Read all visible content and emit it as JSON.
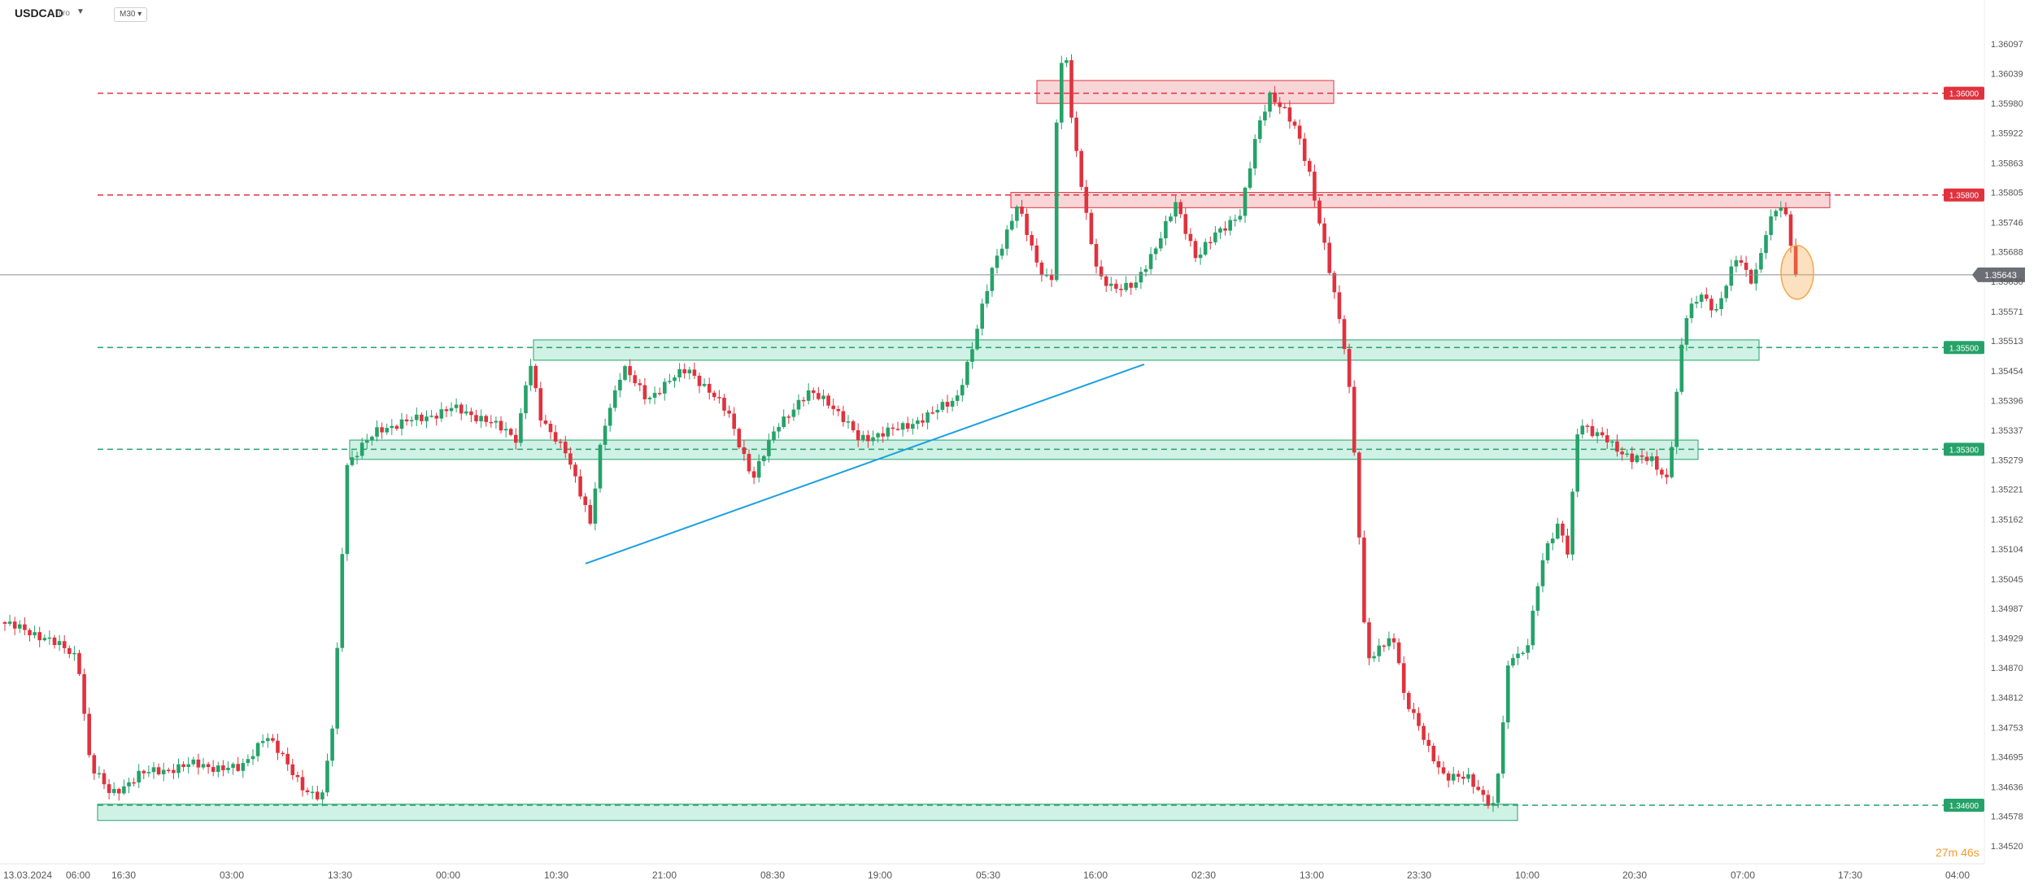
{
  "toolbar": {
    "symbol": "USDCAD",
    "symbol_suffix": "cro",
    "timeframe": "M30",
    "countdown": "27m 46s"
  },
  "colors": {
    "up": "#26a269",
    "down": "#e0323e",
    "zone_resistance": "#f3b4b8",
    "zone_support": "#a9e6cf",
    "trendline": "#1ba0e0",
    "current_price_badge": "#6b6e75",
    "highlight_circle": "#f4a94a"
  },
  "chart_data": {
    "type": "candlestick",
    "symbol": "USDCAD",
    "timeframe": "M30",
    "y_axis": {
      "ticks": [
        "1.36097",
        "1.36039",
        "1.35980",
        "1.35922",
        "1.35863",
        "1.35805",
        "1.35746",
        "1.35688",
        "1.35630",
        "1.35571",
        "1.35513",
        "1.35454",
        "1.35396",
        "1.35337",
        "1.35279",
        "1.35221",
        "1.35162",
        "1.35104",
        "1.35045",
        "1.34987",
        "1.34929",
        "1.34870",
        "1.34812",
        "1.34753",
        "1.34695",
        "1.34636",
        "1.34578",
        "1.34520"
      ],
      "range": [
        1.3452,
        1.36097
      ]
    },
    "x_axis": {
      "ticks": [
        "13.03.2024",
        "06:00",
        "16:30",
        "03:00",
        "13:30",
        "00:00",
        "10:30",
        "21:00",
        "08:30",
        "19:00",
        "05:30",
        "16:00",
        "02:30",
        "13:00",
        "23:30",
        "10:00",
        "20:30",
        "07:00",
        "17:30",
        "04:00"
      ]
    },
    "current_price": "1.35643",
    "levels": [
      {
        "label": "1.36000",
        "value": 1.36,
        "kind": "resistance"
      },
      {
        "label": "1.35800",
        "value": 1.358,
        "kind": "resistance"
      },
      {
        "label": "1.35500",
        "value": 1.355,
        "kind": "support"
      },
      {
        "label": "1.35300",
        "value": 1.353,
        "kind": "support"
      },
      {
        "label": "1.34600",
        "value": 1.346,
        "kind": "support"
      }
    ],
    "zones": [
      {
        "kind": "resistance",
        "low": 1.3598,
        "high": 1.36025,
        "start": 1275,
        "end": 1640
      },
      {
        "kind": "resistance",
        "low": 1.35775,
        "high": 1.35805,
        "start": 1243,
        "end": 2250
      },
      {
        "kind": "support",
        "low": 1.35475,
        "high": 1.35515,
        "start": 656,
        "end": 2163
      },
      {
        "kind": "support",
        "low": 1.3528,
        "high": 1.35318,
        "start": 430,
        "end": 2088
      },
      {
        "kind": "support",
        "low": 1.3457,
        "high": 1.34602,
        "start": 120,
        "end": 1866
      }
    ],
    "trendline": {
      "from": {
        "x": 720,
        "y": 1.35075
      },
      "to": {
        "x": 1407,
        "y": 1.35467
      }
    },
    "anchors": [
      [
        4,
        1.3496
      ],
      [
        60,
        1.3493
      ],
      [
        100,
        1.3489
      ],
      [
        115,
        1.3468
      ],
      [
        140,
        1.3462
      ],
      [
        175,
        1.3466
      ],
      [
        240,
        1.3468
      ],
      [
        300,
        1.3467
      ],
      [
        330,
        1.3474
      ],
      [
        380,
        1.3463
      ],
      [
        400,
        1.3461
      ],
      [
        415,
        1.3478
      ],
      [
        430,
        1.3527
      ],
      [
        470,
        1.3534
      ],
      [
        520,
        1.3536
      ],
      [
        560,
        1.3538
      ],
      [
        600,
        1.3536
      ],
      [
        640,
        1.3532
      ],
      [
        655,
        1.3548
      ],
      [
        670,
        1.3535
      ],
      [
        700,
        1.353
      ],
      [
        730,
        1.3515
      ],
      [
        745,
        1.3534
      ],
      [
        770,
        1.3546
      ],
      [
        800,
        1.354
      ],
      [
        850,
        1.3546
      ],
      [
        900,
        1.3537
      ],
      [
        930,
        1.3524
      ],
      [
        960,
        1.3535
      ],
      [
        1000,
        1.3541
      ],
      [
        1020,
        1.354
      ],
      [
        1060,
        1.3532
      ],
      [
        1110,
        1.3534
      ],
      [
        1150,
        1.3537
      ],
      [
        1180,
        1.354
      ],
      [
        1200,
        1.355
      ],
      [
        1225,
        1.3566
      ],
      [
        1255,
        1.3578
      ],
      [
        1280,
        1.3566
      ],
      [
        1297,
        1.3563
      ],
      [
        1305,
        1.3603
      ],
      [
        1315,
        1.3608
      ],
      [
        1320,
        1.3596
      ],
      [
        1340,
        1.3576
      ],
      [
        1355,
        1.3564
      ],
      [
        1375,
        1.3561
      ],
      [
        1400,
        1.3563
      ],
      [
        1425,
        1.3569
      ],
      [
        1450,
        1.3579
      ],
      [
        1475,
        1.3567
      ],
      [
        1500,
        1.3573
      ],
      [
        1530,
        1.3576
      ],
      [
        1550,
        1.3593
      ],
      [
        1565,
        1.36
      ],
      [
        1585,
        1.3596
      ],
      [
        1600,
        1.3592
      ],
      [
        1615,
        1.3584
      ],
      [
        1630,
        1.3572
      ],
      [
        1645,
        1.356
      ],
      [
        1660,
        1.3548
      ],
      [
        1672,
        1.3525
      ],
      [
        1680,
        1.3497
      ],
      [
        1690,
        1.3487
      ],
      [
        1700,
        1.3491
      ],
      [
        1720,
        1.3493
      ],
      [
        1730,
        1.3482
      ],
      [
        1760,
        1.3471
      ],
      [
        1780,
        1.3466
      ],
      [
        1810,
        1.3465
      ],
      [
        1840,
        1.346
      ],
      [
        1846,
        1.3466
      ],
      [
        1860,
        1.3489
      ],
      [
        1880,
        1.349
      ],
      [
        1900,
        1.3508
      ],
      [
        1920,
        1.3515
      ],
      [
        1932,
        1.351
      ],
      [
        1945,
        1.3536
      ],
      [
        1960,
        1.3533
      ],
      [
        1980,
        1.3532
      ],
      [
        2010,
        1.3528
      ],
      [
        2035,
        1.3528
      ],
      [
        2055,
        1.3524
      ],
      [
        2068,
        1.3544
      ],
      [
        2075,
        1.3555
      ],
      [
        2095,
        1.3561
      ],
      [
        2115,
        1.3557
      ],
      [
        2140,
        1.3568
      ],
      [
        2160,
        1.3563
      ],
      [
        2175,
        1.3572
      ],
      [
        2190,
        1.3578
      ],
      [
        2200,
        1.3576
      ],
      [
        2205,
        1.3573
      ],
      [
        2210,
        1.35643
      ]
    ]
  }
}
